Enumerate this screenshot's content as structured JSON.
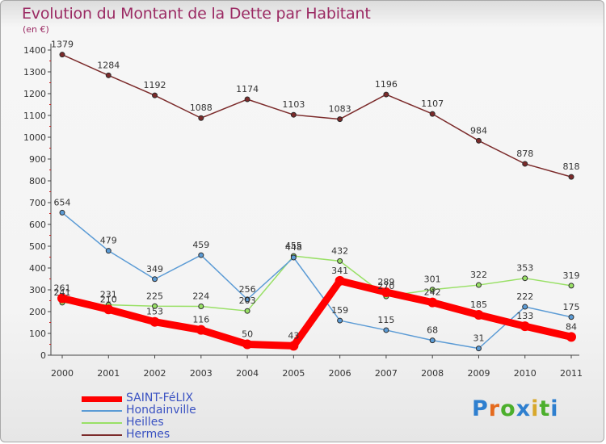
{
  "title": "Evolution du Montant de la Dette par Habitant",
  "subtitle": "(en €)",
  "logo": "Proxiti",
  "chart_data": {
    "type": "line",
    "x": [
      "2000",
      "2001",
      "2002",
      "2003",
      "2004",
      "2005",
      "2006",
      "2007",
      "2008",
      "2009",
      "2010",
      "2011"
    ],
    "ylim": [
      0,
      1400
    ],
    "yticks": [
      0,
      100,
      200,
      300,
      400,
      500,
      600,
      700,
      800,
      900,
      1000,
      1100,
      1200,
      1300,
      1400
    ],
    "grid": false,
    "legend_position": "bottom-left",
    "series": [
      {
        "name": "SAINT-FéLIX",
        "color": "#ff0000",
        "values": [
          261,
          210,
          153,
          116,
          50,
          43,
          341,
          289,
          242,
          185,
          133,
          84
        ]
      },
      {
        "name": "Hondainville",
        "color": "#5b9bd5",
        "values": [
          654,
          479,
          349,
          459,
          256,
          448,
          159,
          115,
          68,
          31,
          222,
          175
        ]
      },
      {
        "name": "Heilles",
        "color": "#99e066",
        "values": [
          241,
          231,
          225,
          224,
          203,
          455,
          432,
          270,
          301,
          322,
          353,
          319
        ]
      },
      {
        "name": "Hermes",
        "color": "#7b2a2a",
        "values": [
          1379,
          1284,
          1192,
          1088,
          1174,
          1103,
          1083,
          1196,
          1107,
          984,
          878,
          818
        ]
      }
    ]
  }
}
